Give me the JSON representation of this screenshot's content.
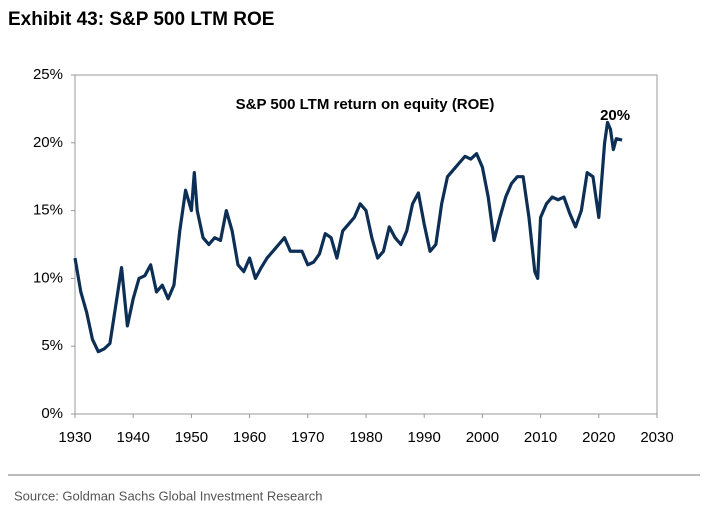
{
  "chart_data": {
    "type": "line",
    "title": "Exhibit 43: S&P 500 LTM ROE",
    "subtitle": "S&P 500 LTM return on equity (ROE)",
    "source": "Source: Goldman Sachs Global Investment Research",
    "annotation": "20%",
    "x": [
      1930,
      1931,
      1932,
      1933,
      1934,
      1935,
      1936,
      1937,
      1938,
      1939,
      1940,
      1941,
      1942,
      1943,
      1944,
      1945,
      1946,
      1947,
      1948,
      1949,
      1950,
      1950.5,
      1951,
      1952,
      1953,
      1954,
      1955,
      1956,
      1957,
      1958,
      1959,
      1960,
      1961,
      1962,
      1963,
      1964,
      1965,
      1966,
      1967,
      1968,
      1969,
      1970,
      1971,
      1972,
      1973,
      1974,
      1975,
      1976,
      1977,
      1978,
      1979,
      1980,
      1981,
      1982,
      1983,
      1984,
      1985,
      1986,
      1987,
      1988,
      1989,
      1990,
      1991,
      1992,
      1993,
      1994,
      1995,
      1996,
      1997,
      1998,
      1999,
      2000,
      2001,
      2002,
      2003,
      2004,
      2005,
      2006,
      2007,
      2008,
      2009,
      2009.5,
      2010,
      2011,
      2012,
      2013,
      2014,
      2015,
      2016,
      2017,
      2018,
      2019,
      2020,
      2021,
      2021.5,
      2022,
      2022.5,
      2023,
      2024
    ],
    "series": [
      {
        "name": "S&P 500 LTM ROE",
        "color": "#0d2f55",
        "values": [
          11.5,
          9,
          7.5,
          5.5,
          4.6,
          4.8,
          5.2,
          8,
          10.8,
          6.5,
          8.5,
          10,
          10.2,
          11,
          9,
          9.5,
          8.5,
          9.5,
          13.5,
          16.5,
          15,
          17.8,
          15,
          13,
          12.5,
          13,
          12.8,
          15,
          13.5,
          11,
          10.5,
          11.5,
          10,
          10.8,
          11.5,
          12,
          12.5,
          13,
          12,
          12,
          12,
          11,
          11.2,
          11.8,
          13.3,
          13,
          11.5,
          13.5,
          14,
          14.5,
          15.5,
          15,
          13,
          11.5,
          12,
          13.8,
          13,
          12.5,
          13.5,
          15.5,
          16.3,
          14,
          12,
          12.5,
          15.5,
          17.5,
          18,
          18.5,
          19,
          18.8,
          19.2,
          18.2,
          16,
          12.8,
          14.5,
          16,
          17,
          17.5,
          17.5,
          14.5,
          10.5,
          10,
          14.5,
          15.5,
          16,
          15.8,
          16,
          14.8,
          13.8,
          15,
          17.8,
          17.5,
          14.5,
          20,
          21.5,
          21,
          19.5,
          20.3,
          20.2
        ]
      }
    ],
    "xlim": [
      1930,
      2030
    ],
    "xticks": [
      1930,
      1940,
      1950,
      1960,
      1970,
      1980,
      1990,
      2000,
      2010,
      2020,
      2030
    ],
    "ylim": [
      0,
      25
    ],
    "yticks": [
      {
        "value": 0,
        "label": "0%"
      },
      {
        "value": 5,
        "label": "5%"
      },
      {
        "value": 10,
        "label": "10%"
      },
      {
        "value": 15,
        "label": "15%"
      },
      {
        "value": 20,
        "label": "20%"
      },
      {
        "value": 25,
        "label": "25%"
      }
    ]
  }
}
